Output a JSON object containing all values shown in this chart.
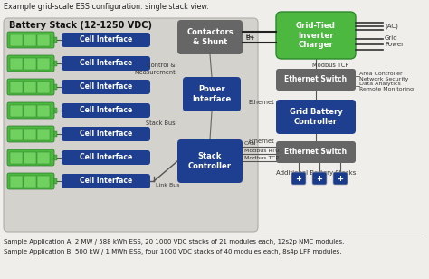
{
  "title": "Example grid-scale ESS configuration: single stack view.",
  "bg_color": "#f0eeeb",
  "main_bg": "#d0cfc8",
  "cell_interface_color": "#1e3f8f",
  "contactors_color": "#666666",
  "power_interface_color": "#1e3f8f",
  "stack_controller_color": "#1e3f8f",
  "grid_tied_color": "#4cb840",
  "ethernet_switch_color": "#666666",
  "grid_battery_color": "#1e3f8f",
  "battery_stack_label": "Battery Stack (12-1250 VDC)",
  "footer1": "Sample Application A: 2 MW / 588 kWh ESS, 20 1000 VDC stacks of 21 modules each, 12s2p NMC modules.",
  "footer2": "Sample Application B: 500 kW / 1 MWh ESS, four 1000 VDC stacks of 40 modules each, 8s4p LFP modules.",
  "battery_green": "#4cb840",
  "battery_dark_green": "#2a7a2a",
  "battery_light_green": "#70d060"
}
